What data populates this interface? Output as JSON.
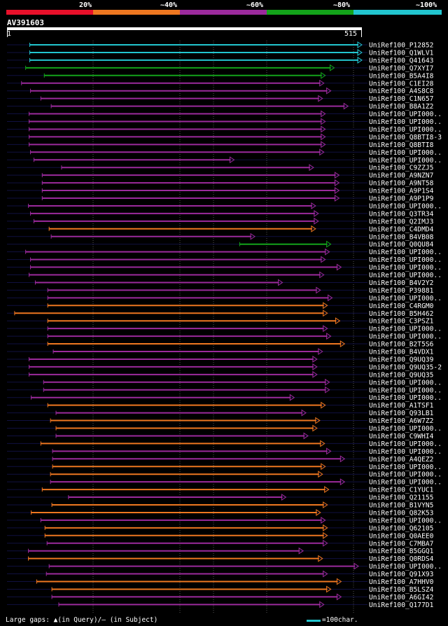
{
  "legend": {
    "labels": [
      "20%",
      "~40%",
      "~60%",
      "~80%",
      "~100%"
    ],
    "colors": [
      "#e8102a",
      "#ee7720",
      "#9b2a9c",
      "#13a31a",
      "#22c5cf"
    ]
  },
  "query": {
    "name": "AV391603",
    "start": "1",
    "end": "515"
  },
  "footer": {
    "gaps_text": "Large gaps: ▲(in Query)/— (in Subject)",
    "scale_text": "=100char."
  },
  "chart_data": {
    "type": "alignment",
    "query_length": 515,
    "hits": [
      {
        "id": "UniRef100_P12852",
        "start": 34,
        "end": 515,
        "identity_band": "~100%"
      },
      {
        "id": "UniRef100_Q1WLV1",
        "start": 34,
        "end": 515,
        "identity_band": "~100%"
      },
      {
        "id": "UniRef100_Q41643",
        "start": 34,
        "end": 515,
        "identity_band": "~100%"
      },
      {
        "id": "UniRef100_Q7XYI7",
        "start": 28,
        "end": 475,
        "identity_band": "~80%"
      },
      {
        "id": "UniRef100_B5A4I8",
        "start": 55,
        "end": 462,
        "identity_band": "~80%"
      },
      {
        "id": "UniRef100_C1EI28",
        "start": 22,
        "end": 460,
        "identity_band": "~60%"
      },
      {
        "id": "UniRef100_A4S8C8",
        "start": 35,
        "end": 470,
        "identity_band": "~60%"
      },
      {
        "id": "UniRef100_C1N657",
        "start": 50,
        "end": 458,
        "identity_band": "~60%"
      },
      {
        "id": "UniRef100_B8A1Z2",
        "start": 65,
        "end": 495,
        "identity_band": "~60%"
      },
      {
        "id": "UniRef100_UPI000..",
        "start": 33,
        "end": 462,
        "identity_band": "~60%"
      },
      {
        "id": "UniRef100_UPI000..",
        "start": 33,
        "end": 462,
        "identity_band": "~60%"
      },
      {
        "id": "UniRef100_UPI000..",
        "start": 33,
        "end": 462,
        "identity_band": "~60%"
      },
      {
        "id": "UniRef100_Q8BTI8-3",
        "start": 33,
        "end": 462,
        "identity_band": "~60%"
      },
      {
        "id": "UniRef100_Q8BTI8",
        "start": 33,
        "end": 462,
        "identity_band": "~60%"
      },
      {
        "id": "UniRef100_UPI000..",
        "start": 35,
        "end": 460,
        "identity_band": "~60%"
      },
      {
        "id": "UniRef100_UPI000..",
        "start": 40,
        "end": 330,
        "identity_band": "~60%"
      },
      {
        "id": "UniRef100_C9ZZJ5",
        "start": 80,
        "end": 445,
        "identity_band": "~60%"
      },
      {
        "id": "UniRef100_A9NZN7",
        "start": 52,
        "end": 482,
        "identity_band": "~60%"
      },
      {
        "id": "UniRef100_A9NT58",
        "start": 52,
        "end": 482,
        "identity_band": "~60%"
      },
      {
        "id": "UniRef100_A9P1S4",
        "start": 52,
        "end": 482,
        "identity_band": "~60%"
      },
      {
        "id": "UniRef100_A9P1P9",
        "start": 52,
        "end": 482,
        "identity_band": "~60%"
      },
      {
        "id": "UniRef100_UPI000..",
        "start": 32,
        "end": 448,
        "identity_band": "~60%"
      },
      {
        "id": "UniRef100_Q3TR34",
        "start": 35,
        "end": 452,
        "identity_band": "~60%"
      },
      {
        "id": "UniRef100_Q2IMJ3",
        "start": 40,
        "end": 452,
        "identity_band": "~60%"
      },
      {
        "id": "UniRef100_C4DMD4",
        "start": 62,
        "end": 448,
        "identity_band": "~40%"
      },
      {
        "id": "UniRef100_B4VB08",
        "start": 65,
        "end": 360,
        "identity_band": "~60%"
      },
      {
        "id": "UniRef100_Q0QU84",
        "start": 338,
        "end": 470,
        "identity_band": "~80%"
      },
      {
        "id": "UniRef100_UPI000..",
        "start": 28,
        "end": 468,
        "identity_band": "~60%"
      },
      {
        "id": "UniRef100_UPI000..",
        "start": 35,
        "end": 462,
        "identity_band": "~60%"
      },
      {
        "id": "UniRef100_UPI000..",
        "start": 35,
        "end": 485,
        "identity_band": "~60%"
      },
      {
        "id": "UniRef100_UPI000..",
        "start": 33,
        "end": 460,
        "identity_band": "~60%"
      },
      {
        "id": "UniRef100_B4V2Y2",
        "start": 42,
        "end": 400,
        "identity_band": "~60%"
      },
      {
        "id": "UniRef100_P39881",
        "start": 60,
        "end": 455,
        "identity_band": "~60%"
      },
      {
        "id": "UniRef100_UPI000..",
        "start": 60,
        "end": 472,
        "identity_band": "~60%"
      },
      {
        "id": "UniRef100_C4RGM0",
        "start": 60,
        "end": 465,
        "identity_band": "~40%"
      },
      {
        "id": "UniRef100_B5H462",
        "start": 12,
        "end": 465,
        "identity_band": "~40%"
      },
      {
        "id": "UniRef100_C3PSZ1",
        "start": 60,
        "end": 483,
        "identity_band": "~40%"
      },
      {
        "id": "UniRef100_UPI000..",
        "start": 60,
        "end": 465,
        "identity_band": "~60%"
      },
      {
        "id": "UniRef100_UPI000..",
        "start": 60,
        "end": 470,
        "identity_band": "~60%"
      },
      {
        "id": "UniRef100_B2T5S6",
        "start": 60,
        "end": 490,
        "identity_band": "~40%"
      },
      {
        "id": "UniRef100_B4VDX1",
        "start": 68,
        "end": 458,
        "identity_band": "~60%"
      },
      {
        "id": "UniRef100_Q9UQ39",
        "start": 33,
        "end": 450,
        "identity_band": "~60%"
      },
      {
        "id": "UniRef100_Q9UQ35-2",
        "start": 33,
        "end": 450,
        "identity_band": "~60%"
      },
      {
        "id": "UniRef100_Q9UQ35",
        "start": 33,
        "end": 450,
        "identity_band": "~60%"
      },
      {
        "id": "UniRef100_UPI000..",
        "start": 54,
        "end": 468,
        "identity_band": "~60%"
      },
      {
        "id": "UniRef100_UPI000..",
        "start": 54,
        "end": 468,
        "identity_band": "~60%"
      },
      {
        "id": "UniRef100_UPI000..",
        "start": 36,
        "end": 417,
        "identity_band": "~60%"
      },
      {
        "id": "UniRef100_A1TSF1",
        "start": 60,
        "end": 462,
        "identity_band": "~40%"
      },
      {
        "id": "UniRef100_Q93LB1",
        "start": 72,
        "end": 434,
        "identity_band": "~60%"
      },
      {
        "id": "UniRef100_A6W7Z2",
        "start": 64,
        "end": 454,
        "identity_band": "~40%"
      },
      {
        "id": "UniRef100_UPI000..",
        "start": 72,
        "end": 450,
        "identity_band": "~40%"
      },
      {
        "id": "UniRef100_C9WHI4",
        "start": 72,
        "end": 437,
        "identity_band": "~60%"
      },
      {
        "id": "UniRef100_UPI000..",
        "start": 50,
        "end": 461,
        "identity_band": "~40%"
      },
      {
        "id": "UniRef100_UPI000..",
        "start": 67,
        "end": 470,
        "identity_band": "~60%"
      },
      {
        "id": "UniRef100_A4QEZ2",
        "start": 67,
        "end": 490,
        "identity_band": "~60%"
      },
      {
        "id": "UniRef100_UPI000..",
        "start": 67,
        "end": 462,
        "identity_band": "~40%"
      },
      {
        "id": "UniRef100_UPI000..",
        "start": 64,
        "end": 458,
        "identity_band": "~40%"
      },
      {
        "id": "UniRef100_UPI000..",
        "start": 64,
        "end": 490,
        "identity_band": "~60%"
      },
      {
        "id": "UniRef100_C1YUC1",
        "start": 52,
        "end": 467,
        "identity_band": "~40%"
      },
      {
        "id": "UniRef100_Q21155",
        "start": 90,
        "end": 405,
        "identity_band": "~60%"
      },
      {
        "id": "UniRef100_B1VYN5",
        "start": 66,
        "end": 465,
        "identity_band": "~40%"
      },
      {
        "id": "UniRef100_Q82K53",
        "start": 36,
        "end": 455,
        "identity_band": "~40%"
      },
      {
        "id": "UniRef100_UPI000..",
        "start": 50,
        "end": 462,
        "identity_band": "~60%"
      },
      {
        "id": "UniRef100_Q62105",
        "start": 56,
        "end": 465,
        "identity_band": "~40%"
      },
      {
        "id": "UniRef100_Q0AEE0",
        "start": 56,
        "end": 465,
        "identity_band": "~40%"
      },
      {
        "id": "UniRef100_C7MBA7",
        "start": 59,
        "end": 465,
        "identity_band": "~60%"
      },
      {
        "id": "UniRef100_B5GGQ1",
        "start": 32,
        "end": 430,
        "identity_band": "~60%"
      },
      {
        "id": "UniRef100_Q0RDS4",
        "start": 32,
        "end": 458,
        "identity_band": "~40%"
      },
      {
        "id": "UniRef100_UPI000..",
        "start": 62,
        "end": 510,
        "identity_band": "~60%"
      },
      {
        "id": "UniRef100_Q91X93",
        "start": 58,
        "end": 465,
        "identity_band": "~60%"
      },
      {
        "id": "UniRef100_A7HHV0",
        "start": 44,
        "end": 485,
        "identity_band": "~40%"
      },
      {
        "id": "UniRef100_B5LSZ4",
        "start": 66,
        "end": 470,
        "identity_band": "~40%"
      },
      {
        "id": "UniRef100_A6GI42",
        "start": 66,
        "end": 485,
        "identity_band": "~60%"
      },
      {
        "id": "UniRef100_Q177D1",
        "start": 76,
        "end": 460,
        "identity_band": "~60%"
      }
    ]
  }
}
